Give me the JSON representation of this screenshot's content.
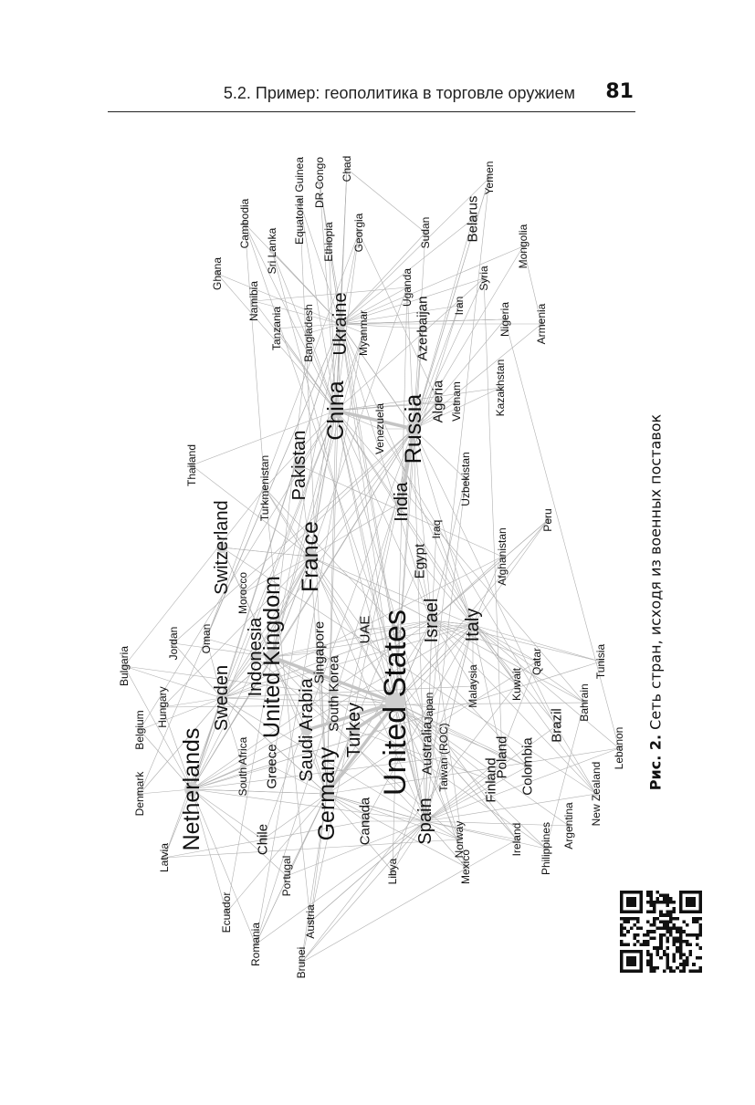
{
  "header": {
    "title": "5.2. Пример: геополитика в торговле оружием",
    "page_number": "81"
  },
  "caption": {
    "prefix": "Рис. 2.",
    "text": "Сеть стран, исходя из военных поставок"
  },
  "graph": {
    "nodes": [
      {
        "id": "us",
        "label": "United States",
        "size": 5
      },
      {
        "id": "ru",
        "label": "Russia",
        "size": 4
      },
      {
        "id": "de",
        "label": "Germany",
        "size": 4
      },
      {
        "id": "cn",
        "label": "China",
        "size": 4
      },
      {
        "id": "fr",
        "label": "France",
        "size": 4
      },
      {
        "id": "uk",
        "label": "United Kingdom",
        "size": 4
      },
      {
        "id": "nl",
        "label": "Netherlands",
        "size": 4
      },
      {
        "id": "ua",
        "label": "Ukraine",
        "size": 3
      },
      {
        "id": "it",
        "label": "Italy",
        "size": 3
      },
      {
        "id": "se",
        "label": "Sweden",
        "size": 3
      },
      {
        "id": "es",
        "label": "Spain",
        "size": 3
      },
      {
        "id": "il",
        "label": "Israel",
        "size": 3
      },
      {
        "id": "in",
        "label": "India",
        "size": 3
      },
      {
        "id": "pk",
        "label": "Pakistan",
        "size": 3
      },
      {
        "id": "ch",
        "label": "Switzerland",
        "size": 3
      },
      {
        "id": "tr",
        "label": "Turkey",
        "size": 3
      },
      {
        "id": "sa",
        "label": "Saudi Arabia",
        "size": 3
      },
      {
        "id": "id",
        "label": "Indonesia",
        "size": 3
      },
      {
        "id": "by",
        "label": "Belarus",
        "size": 2
      },
      {
        "id": "br",
        "label": "Brazil",
        "size": 2
      },
      {
        "id": "pl",
        "label": "Poland",
        "size": 2
      },
      {
        "id": "fi",
        "label": "Finland",
        "size": 2
      },
      {
        "id": "co",
        "label": "Colombia",
        "size": 2
      },
      {
        "id": "gr",
        "label": "Greece",
        "size": 2
      },
      {
        "id": "cl",
        "label": "Chile",
        "size": 2
      },
      {
        "id": "au",
        "label": "Australia",
        "size": 2
      },
      {
        "id": "ca",
        "label": "Canada",
        "size": 2
      },
      {
        "id": "kr",
        "label": "South Korea",
        "size": 2
      },
      {
        "id": "sg",
        "label": "Singapore",
        "size": 2
      },
      {
        "id": "ae",
        "label": "UAE",
        "size": 2
      },
      {
        "id": "az",
        "label": "Azerbaijan",
        "size": 2
      },
      {
        "id": "bd",
        "label": "Bangladesh",
        "size": 1
      },
      {
        "id": "mm",
        "label": "Myanmar",
        "size": 1
      },
      {
        "id": "dz",
        "label": "Algeria",
        "size": 2
      },
      {
        "id": "vn",
        "label": "Vietnam",
        "size": 1
      },
      {
        "id": "ve",
        "label": "Venezuela",
        "size": 1
      },
      {
        "id": "uz",
        "label": "Uzbekistan",
        "size": 1
      },
      {
        "id": "eg",
        "label": "Egypt",
        "size": 2
      },
      {
        "id": "iq",
        "label": "Iraq",
        "size": 1
      },
      {
        "id": "af",
        "label": "Afghanistan",
        "size": 1
      },
      {
        "id": "pe",
        "label": "Peru",
        "size": 1
      },
      {
        "id": "tm",
        "label": "Turkmenistan",
        "size": 1
      },
      {
        "id": "th",
        "label": "Thailand",
        "size": 1
      },
      {
        "id": "ma",
        "label": "Morocco",
        "size": 1
      },
      {
        "id": "om",
        "label": "Oman",
        "size": 1
      },
      {
        "id": "jo",
        "label": "Jordan",
        "size": 1
      },
      {
        "id": "bg",
        "label": "Bulgaria",
        "size": 1
      },
      {
        "id": "hu",
        "label": "Hungary",
        "size": 1
      },
      {
        "id": "be",
        "label": "Belgium",
        "size": 1
      },
      {
        "id": "dk",
        "label": "Denmark",
        "size": 1
      },
      {
        "id": "lv",
        "label": "Latvia",
        "size": 1
      },
      {
        "id": "za",
        "label": "South Africa",
        "size": 1
      },
      {
        "id": "ec",
        "label": "Ecuador",
        "size": 1
      },
      {
        "id": "ro",
        "label": "Romania",
        "size": 1
      },
      {
        "id": "bn",
        "label": "Brunei",
        "size": 1
      },
      {
        "id": "at",
        "label": "Austria",
        "size": 1
      },
      {
        "id": "pt",
        "label": "Portugal",
        "size": 1
      },
      {
        "id": "ly",
        "label": "Libya",
        "size": 1
      },
      {
        "id": "mx",
        "label": "Mexico",
        "size": 1
      },
      {
        "id": "no",
        "label": "Norway",
        "size": 1
      },
      {
        "id": "ie",
        "label": "Ireland",
        "size": 1
      },
      {
        "id": "ph",
        "label": "Philippines",
        "size": 1
      },
      {
        "id": "ar",
        "label": "Argentina",
        "size": 1
      },
      {
        "id": "nz",
        "label": "New Zealand",
        "size": 1
      },
      {
        "id": "lb",
        "label": "Lebanon",
        "size": 1
      },
      {
        "id": "bh",
        "label": "Bahrain",
        "size": 1
      },
      {
        "id": "tn",
        "label": "Tunisia",
        "size": 1
      },
      {
        "id": "qa",
        "label": "Qatar",
        "size": 1
      },
      {
        "id": "kw",
        "label": "Kuwait",
        "size": 1
      },
      {
        "id": "my",
        "label": "Malaysia",
        "size": 1
      },
      {
        "id": "jp",
        "label": "Japan",
        "size": 1
      },
      {
        "id": "tw",
        "label": "Taiwan (ROC)",
        "size": 1
      },
      {
        "id": "gh",
        "label": "Ghana",
        "size": 1
      },
      {
        "id": "na",
        "label": "Namibia",
        "size": 1
      },
      {
        "id": "tz",
        "label": "Tanzania",
        "size": 1
      },
      {
        "id": "kh",
        "label": "Cambodia",
        "size": 1
      },
      {
        "id": "lk",
        "label": "Sri Lanka",
        "size": 1
      },
      {
        "id": "gq",
        "label": "Equatorial Guinea",
        "size": 1
      },
      {
        "id": "et",
        "label": "Ethiopia",
        "size": 1
      },
      {
        "id": "cd",
        "label": "DR Congo",
        "size": 1
      },
      {
        "id": "td",
        "label": "Chad",
        "size": 1
      },
      {
        "id": "ge",
        "label": "Georgia",
        "size": 1
      },
      {
        "id": "sd",
        "label": "Sudan",
        "size": 1
      },
      {
        "id": "ug",
        "label": "Uganda",
        "size": 1
      },
      {
        "id": "ye",
        "label": "Yemen",
        "size": 1
      },
      {
        "id": "ir",
        "label": "Iran",
        "size": 1
      },
      {
        "id": "sy",
        "label": "Syria",
        "size": 1
      },
      {
        "id": "mn",
        "label": "Mongolia",
        "size": 1
      },
      {
        "id": "ng",
        "label": "Nigeria",
        "size": 1
      },
      {
        "id": "kz",
        "label": "Kazakhstan",
        "size": 1
      },
      {
        "id": "am",
        "label": "Armenia",
        "size": 1
      }
    ]
  }
}
